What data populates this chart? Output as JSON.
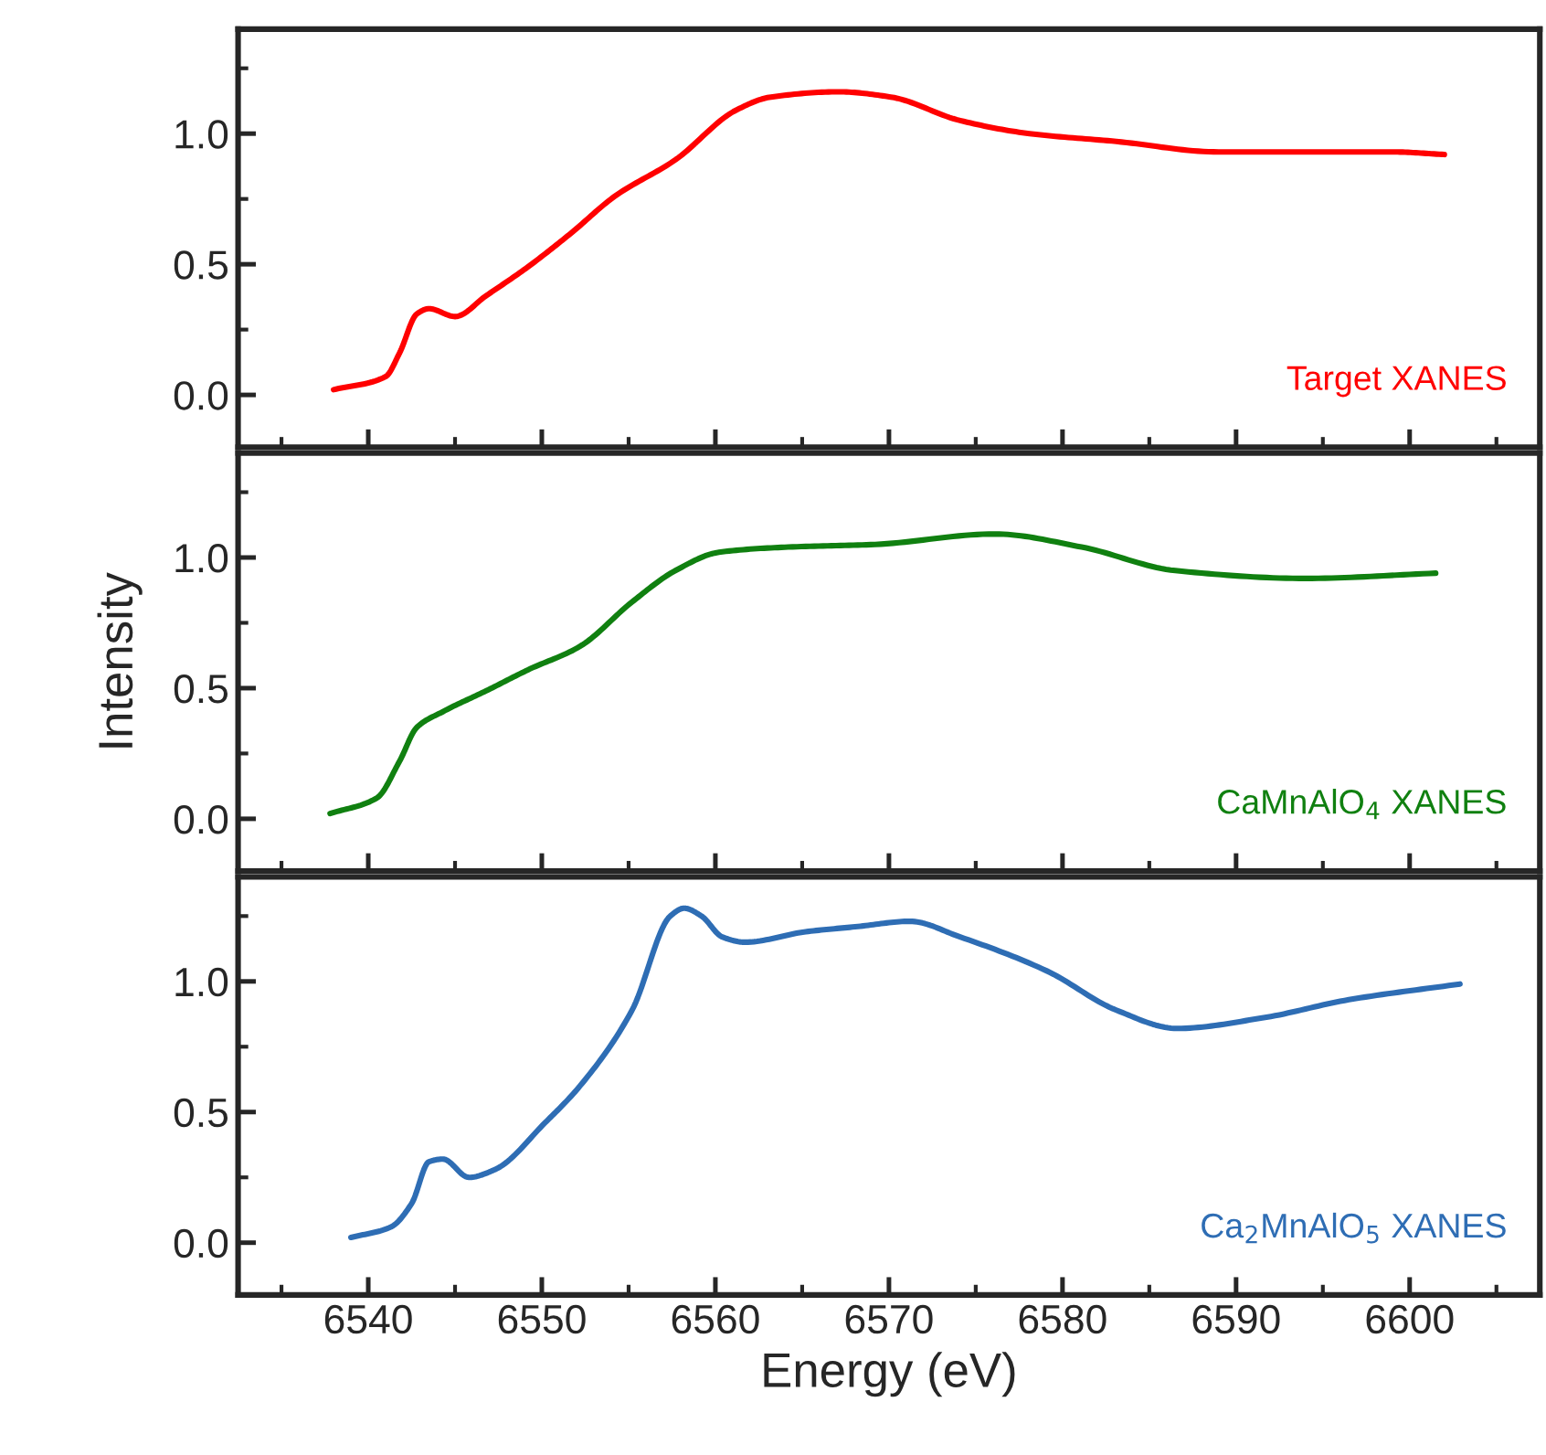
{
  "chart_data": [
    {
      "type": "line",
      "xlim": [
        6532.5,
        6607.5
      ],
      "ylim": [
        -0.2,
        1.4
      ],
      "tick_labels": "y",
      "grid": false,
      "legend": false,
      "xticks": [
        6540,
        6550,
        6560,
        6570,
        6580,
        6590,
        6600
      ],
      "yticks": [
        {
          "value": 0,
          "label": "0.0"
        },
        {
          "value": 0.5,
          "label": "0.5"
        },
        {
          "value": 1,
          "label": "1.0"
        }
      ],
      "series": [
        {
          "name": "Target XANES",
          "color": "#ff0000",
          "x": [
            6538.0,
            6541.0,
            6541.8,
            6542.8,
            6543.5,
            6545.0,
            6546.8,
            6549.2,
            6551.7,
            6554.2,
            6557.7,
            6561.2,
            6563.2,
            6567.1,
            6570.1,
            6574.1,
            6578.1,
            6583.1,
            6589.0,
            6594.0,
            6599.0,
            6602.0
          ],
          "values": [
            0.02,
            0.07,
            0.16,
            0.31,
            0.33,
            0.3,
            0.38,
            0.49,
            0.62,
            0.76,
            0.9,
            1.09,
            1.14,
            1.16,
            1.14,
            1.05,
            1.0,
            0.97,
            0.93,
            0.93,
            0.93,
            0.92
          ]
        }
      ]
    },
    {
      "type": "line",
      "xlim": [
        6532.5,
        6607.5
      ],
      "ylim": [
        -0.2,
        1.4
      ],
      "tick_labels": "y",
      "grid": false,
      "legend": false,
      "ylabel": "Intensity",
      "xticks": [
        6540,
        6550,
        6560,
        6570,
        6580,
        6590,
        6600
      ],
      "yticks": [
        {
          "value": 0,
          "label": "0.0"
        },
        {
          "value": 0.5,
          "label": "0.5"
        },
        {
          "value": 1,
          "label": "1.0"
        }
      ],
      "series": [
        {
          "name": "CaMnAlO$_{4}$ XANES",
          "color": "#108010",
          "x": [
            6537.8,
            6540.5,
            6541.8,
            6542.8,
            6544.3,
            6546.8,
            6549.2,
            6552.2,
            6555.2,
            6557.7,
            6560.2,
            6564.2,
            6569.2,
            6576.1,
            6581.1,
            6586.5,
            6594.0,
            6601.5
          ],
          "values": [
            0.02,
            0.08,
            0.22,
            0.35,
            0.41,
            0.49,
            0.57,
            0.66,
            0.83,
            0.95,
            1.02,
            1.04,
            1.05,
            1.09,
            1.04,
            0.95,
            0.92,
            0.94
          ]
        }
      ]
    },
    {
      "type": "line",
      "xlim": [
        6532.5,
        6607.5
      ],
      "ylim": [
        -0.2,
        1.4
      ],
      "grid": false,
      "legend": false,
      "xlabel": "Energy (eV)",
      "xticks": [
        6540,
        6550,
        6560,
        6570,
        6580,
        6590,
        6600
      ],
      "yticks": [
        {
          "value": 0,
          "label": "0.0"
        },
        {
          "value": 0.5,
          "label": "0.5"
        },
        {
          "value": 1,
          "label": "1.0"
        }
      ],
      "series": [
        {
          "name": "Ca$_{2}$MnAlO$_{5}$ XANES",
          "color": "#2e6db4",
          "x": [
            6539.0,
            6541.3,
            6542.5,
            6543.5,
            6544.3,
            6545.8,
            6547.3,
            6550.2,
            6552.2,
            6555.2,
            6557.4,
            6558.2,
            6559.2,
            6560.4,
            6561.7,
            6565.2,
            6568.2,
            6571.2,
            6574.1,
            6579.1,
            6583.1,
            6586.6,
            6591.5,
            6596.5,
            6602.9
          ],
          "values": [
            0.02,
            0.06,
            0.15,
            0.31,
            0.32,
            0.25,
            0.28,
            0.46,
            0.6,
            0.89,
            1.25,
            1.28,
            1.25,
            1.17,
            1.15,
            1.19,
            1.21,
            1.23,
            1.17,
            1.04,
            0.89,
            0.82,
            0.86,
            0.93,
            0.99
          ]
        }
      ]
    }
  ]
}
